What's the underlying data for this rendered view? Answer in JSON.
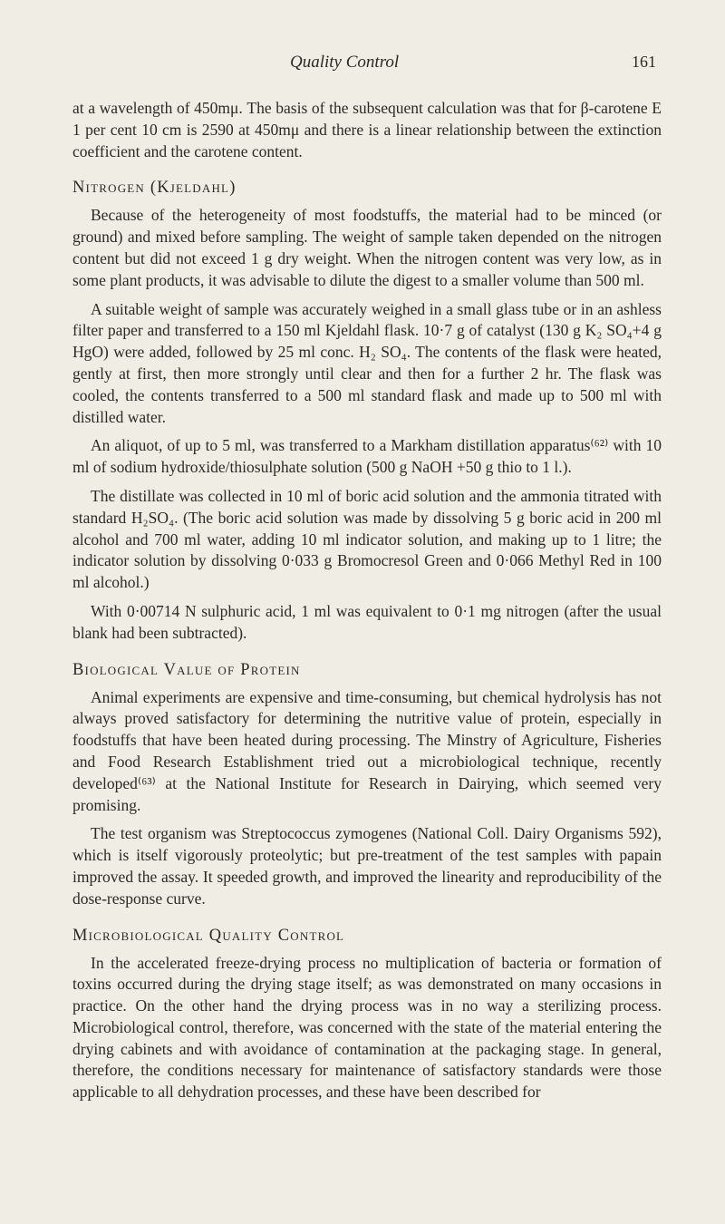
{
  "header": {
    "title": "Quality Control",
    "pageNumber": "161"
  },
  "paragraphs": {
    "p1": "at a wavelength of 450mμ. The basis of the subsequent calculation was that for β-carotene E 1 per cent 10 cm is 2590 at 450mμ and there is a linear relationship between the extinction coefficient and the carotene content."
  },
  "sections": {
    "nitrogen": {
      "heading": "Nitrogen (Kjeldahl)",
      "p1": "Because of the heterogeneity of most foodstuffs, the material had to be minced (or ground) and mixed before sampling. The weight of sample taken depended on the nitrogen content but did not exceed 1 g dry weight. When the nitrogen content was very low, as in some plant products, it was advisable to dilute the digest to a smaller volume than 500 ml.",
      "p2": "A suitable weight of sample was accurately weighed in a small glass tube or in an ashless filter paper and transferred to a 150 ml Kjeldahl flask. 10·7 g of catalyst (130 g K₂ SO₄+4 g HgO) were added, followed by 25 ml conc. H₂ SO₄. The contents of the flask were heated, gently at first, then more strongly until clear and then for a further 2 hr. The flask was cooled, the contents transferred to a 500 ml standard flask and made up to 500 ml with distilled water.",
      "p3": "An aliquot, of up to 5 ml, was transferred to a Markham distillation apparatus⁽⁶²⁾ with 10 ml of sodium hydroxide/thiosulphate solution (500 g NaOH +50 g thio to 1 l.).",
      "p4": "The distillate was collected in 10 ml of boric acid solution and the ammonia titrated with standard H₂SO₄. (The boric acid solution was made by dissolving 5 g boric acid in 200 ml alcohol and 700 ml water, adding 10 ml indicator solution, and making up to 1 litre; the indicator solution by dissolving 0·033 g Bromocresol Green and 0·066 Methyl Red in 100 ml alcohol.)",
      "p5": "With 0·00714 N sulphuric acid, 1 ml was equivalent to 0·1 mg nitrogen (after the usual blank had been subtracted)."
    },
    "biological": {
      "heading": "Biological Value of Protein",
      "p1": "Animal experiments are expensive and time-consuming, but chemical hydrolysis has not always proved satisfactory for determining the nutritive value of protein, especially in foodstuffs that have been heated during processing. The Minstry of Agriculture, Fisheries and Food Research Establishment tried out a microbiological technique, recently developed⁽⁶³⁾ at the National Institute for Research in Dairying, which seemed very promising.",
      "p2": "The test organism was Streptococcus zymogenes (National Coll. Dairy Organisms 592), which is itself vigorously proteolytic; but pre-treatment of the test samples with papain improved the assay. It speeded growth, and improved the linearity and reproducibility of the dose-response curve."
    },
    "microbiological": {
      "heading": "Microbiological Quality Control",
      "p1": "In the accelerated freeze-drying process no multiplication of bacteria or formation of toxins occurred during the drying stage itself; as was demonstrated on many occasions in practice. On the other hand the drying process was in no way a sterilizing process. Microbiological control, therefore, was concerned with the state of the material entering the drying cabinets and with avoidance of contamination at the packaging stage. In general, therefore, the conditions necessary for maintenance of satisfactory standards were those applicable to all dehydration processes, and these have been described for"
    }
  },
  "styling": {
    "background_color": "#f0ede4",
    "text_color": "#2a2a26",
    "body_fontsize": 17.5,
    "heading_fontsize": 18.5,
    "font_family": "Times New Roman"
  }
}
